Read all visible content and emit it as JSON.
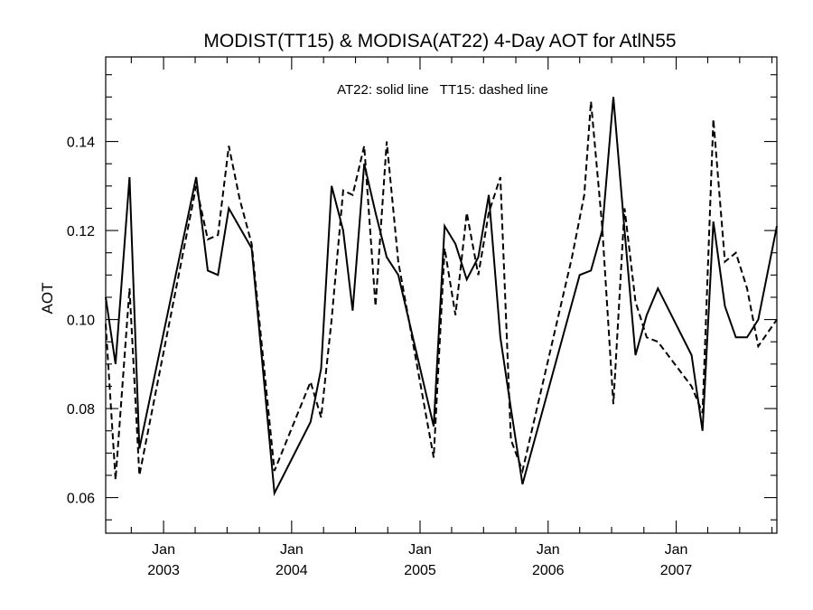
{
  "chart_data": {
    "type": "line",
    "title": "MODIST(TT15) & MODISA(AT22) 4-Day AOT for AtlN55",
    "legend_text": "AT22: solid line   TT15: dashed line",
    "legend_position": "top-center",
    "ylabel": "AOT",
    "xlabel": "",
    "xlim": [
      "2002-07-20",
      "2007-10-15"
    ],
    "ylim": [
      0.052,
      0.159
    ],
    "yticks": [
      {
        "value": 0.06,
        "label": "0.06"
      },
      {
        "value": 0.08,
        "label": "0.08"
      },
      {
        "value": 0.1,
        "label": "0.10"
      },
      {
        "value": 0.12,
        "label": "0.12"
      },
      {
        "value": 0.14,
        "label": "0.14"
      }
    ],
    "xticks": [
      {
        "date": "2003-01-01",
        "month": "Jan",
        "year": "2003"
      },
      {
        "date": "2004-01-01",
        "month": "Jan",
        "year": "2004"
      },
      {
        "date": "2005-01-01",
        "month": "Jan",
        "year": "2005"
      },
      {
        "date": "2006-01-01",
        "month": "Jan",
        "year": "2006"
      },
      {
        "date": "2007-01-01",
        "month": "Jan",
        "year": "2007"
      }
    ],
    "grid": false,
    "series": [
      {
        "name": "AT22",
        "style": "solid",
        "color": "#000000",
        "points": [
          [
            "2002-07-20",
            0.105
          ],
          [
            "2002-08-17",
            0.09
          ],
          [
            "2002-09-26",
            0.132
          ],
          [
            "2002-10-24",
            0.071
          ],
          [
            "2003-04-04",
            0.132
          ],
          [
            "2003-05-07",
            0.111
          ],
          [
            "2003-06-05",
            0.11
          ],
          [
            "2003-07-06",
            0.125
          ],
          [
            "2003-09-09",
            0.116
          ],
          [
            "2003-11-13",
            0.061
          ],
          [
            "2004-02-24",
            0.077
          ],
          [
            "2004-03-25",
            0.089
          ],
          [
            "2004-04-24",
            0.13
          ],
          [
            "2004-05-27",
            0.12
          ],
          [
            "2004-06-23",
            0.102
          ],
          [
            "2004-07-26",
            0.135
          ],
          [
            "2004-08-27",
            0.124
          ],
          [
            "2004-09-28",
            0.114
          ],
          [
            "2004-10-31",
            0.11
          ],
          [
            "2005-02-09",
            0.076
          ],
          [
            "2005-03-12",
            0.121
          ],
          [
            "2005-04-12",
            0.117
          ],
          [
            "2005-05-14",
            0.109
          ],
          [
            "2005-06-16",
            0.114
          ],
          [
            "2005-07-16",
            0.128
          ],
          [
            "2005-08-18",
            0.096
          ],
          [
            "2005-09-17",
            0.08
          ],
          [
            "2005-10-20",
            0.063
          ],
          [
            "2006-04-01",
            0.11
          ],
          [
            "2006-05-03",
            0.111
          ],
          [
            "2006-06-04",
            0.12
          ],
          [
            "2006-07-06",
            0.15
          ],
          [
            "2006-08-07",
            0.12
          ],
          [
            "2006-09-07",
            0.092
          ],
          [
            "2006-10-09",
            0.101
          ],
          [
            "2006-11-10",
            0.107
          ],
          [
            "2007-02-14",
            0.092
          ],
          [
            "2007-03-17",
            0.075
          ],
          [
            "2007-04-17",
            0.122
          ],
          [
            "2007-05-20",
            0.103
          ],
          [
            "2007-06-20",
            0.096
          ],
          [
            "2007-07-22",
            0.096
          ],
          [
            "2007-08-23",
            0.1
          ],
          [
            "2007-10-15",
            0.121
          ]
        ]
      },
      {
        "name": "TT15",
        "style": "dashed",
        "color": "#000000",
        "points": [
          [
            "2002-07-20",
            0.099
          ],
          [
            "2002-08-17",
            0.064
          ],
          [
            "2002-09-26",
            0.107
          ],
          [
            "2002-10-24",
            0.065
          ],
          [
            "2003-04-04",
            0.13
          ],
          [
            "2003-05-07",
            0.118
          ],
          [
            "2003-06-05",
            0.119
          ],
          [
            "2003-07-06",
            0.139
          ],
          [
            "2003-08-06",
            0.127
          ],
          [
            "2003-09-09",
            0.117
          ],
          [
            "2003-11-13",
            0.066
          ],
          [
            "2004-02-24",
            0.086
          ],
          [
            "2004-03-25",
            0.078
          ],
          [
            "2004-04-24",
            0.1
          ],
          [
            "2004-05-27",
            0.129
          ],
          [
            "2004-06-23",
            0.128
          ],
          [
            "2004-07-26",
            0.139
          ],
          [
            "2004-08-27",
            0.103
          ],
          [
            "2004-09-28",
            0.14
          ],
          [
            "2004-10-31",
            0.113
          ],
          [
            "2005-02-09",
            0.069
          ],
          [
            "2005-03-12",
            0.116
          ],
          [
            "2005-04-12",
            0.101
          ],
          [
            "2005-05-14",
            0.124
          ],
          [
            "2005-06-16",
            0.11
          ],
          [
            "2005-07-16",
            0.124
          ],
          [
            "2005-08-18",
            0.132
          ],
          [
            "2005-09-17",
            0.073
          ],
          [
            "2005-10-20",
            0.066
          ],
          [
            "2006-03-10",
            0.114
          ],
          [
            "2006-04-14",
            0.128
          ],
          [
            "2006-05-03",
            0.149
          ],
          [
            "2006-06-04",
            0.121
          ],
          [
            "2006-07-06",
            0.081
          ],
          [
            "2006-08-07",
            0.125
          ],
          [
            "2006-09-07",
            0.104
          ],
          [
            "2006-10-09",
            0.096
          ],
          [
            "2006-11-10",
            0.095
          ],
          [
            "2007-02-14",
            0.085
          ],
          [
            "2007-03-17",
            0.079
          ],
          [
            "2007-04-17",
            0.145
          ],
          [
            "2007-05-20",
            0.113
          ],
          [
            "2007-06-20",
            0.115
          ],
          [
            "2007-07-22",
            0.107
          ],
          [
            "2007-08-23",
            0.094
          ],
          [
            "2007-10-15",
            0.1
          ]
        ]
      }
    ]
  }
}
